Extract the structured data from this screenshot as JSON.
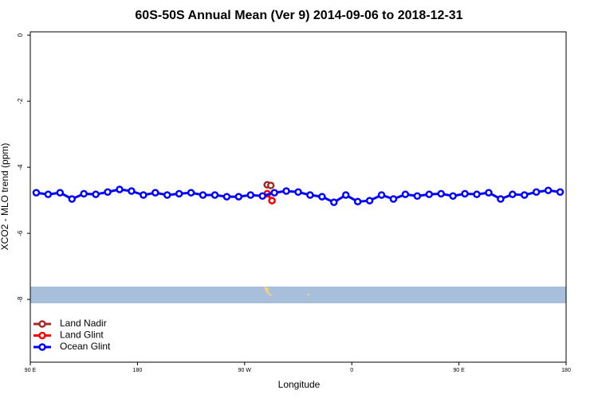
{
  "chart_data": {
    "type": "line",
    "title": "60S-50S Annual Mean (Ver 9)   2014-09-06 to 2018-12-31",
    "x_label": "Longitude",
    "y_label": "XCO2 - MLO trend (ppm)",
    "xlim": [
      90,
      540
    ],
    "xticks": [
      {
        "value": 90,
        "label": "90 E"
      },
      180,
      {
        "value": 270,
        "label": "90 W"
      },
      {
        "value": 360,
        "label": "0"
      },
      {
        "value": 450,
        "label": "90 E"
      },
      {
        "value": 540,
        "label": "180"
      }
    ],
    "ylim": [
      -9.9,
      0.1
    ],
    "yticks": [
      0,
      -2,
      -4,
      -6,
      -8
    ],
    "legend": "bottom-left",
    "series": [
      {
        "name": "Land Nadir",
        "color": "#a52a2a",
        "x": [
          289,
          292
        ],
        "values": [
          -4.53,
          -4.55
        ]
      },
      {
        "name": "Land Glint",
        "color": "#ff0000",
        "x": [
          289,
          293
        ],
        "values": [
          -4.8,
          -5.01
        ]
      },
      {
        "name": "Ocean Glint",
        "color": "#0000ff",
        "x": [
          95,
          105,
          115,
          125,
          135,
          145,
          155,
          165,
          175,
          185,
          195,
          205,
          215,
          225,
          235,
          245,
          255,
          265,
          275,
          285,
          295,
          305,
          315,
          325,
          335,
          345,
          355,
          365,
          375,
          385,
          395,
          405,
          415,
          425,
          435,
          445,
          455,
          465,
          475,
          485,
          495,
          505,
          515,
          525,
          535
        ],
        "values": [
          -4.77,
          -4.82,
          -4.77,
          -4.96,
          -4.8,
          -4.82,
          -4.75,
          -4.67,
          -4.72,
          -4.84,
          -4.77,
          -4.84,
          -4.8,
          -4.77,
          -4.84,
          -4.84,
          -4.89,
          -4.89,
          -4.84,
          -4.87,
          -4.77,
          -4.72,
          -4.75,
          -4.84,
          -4.89,
          -5.06,
          -4.84,
          -5.04,
          -5.01,
          -4.84,
          -4.96,
          -4.82,
          -4.87,
          -4.82,
          -4.8,
          -4.87,
          -4.8,
          -4.82,
          -4.77,
          -4.96,
          -4.82,
          -4.84,
          -4.75,
          -4.7,
          -4.75
        ]
      }
    ]
  }
}
